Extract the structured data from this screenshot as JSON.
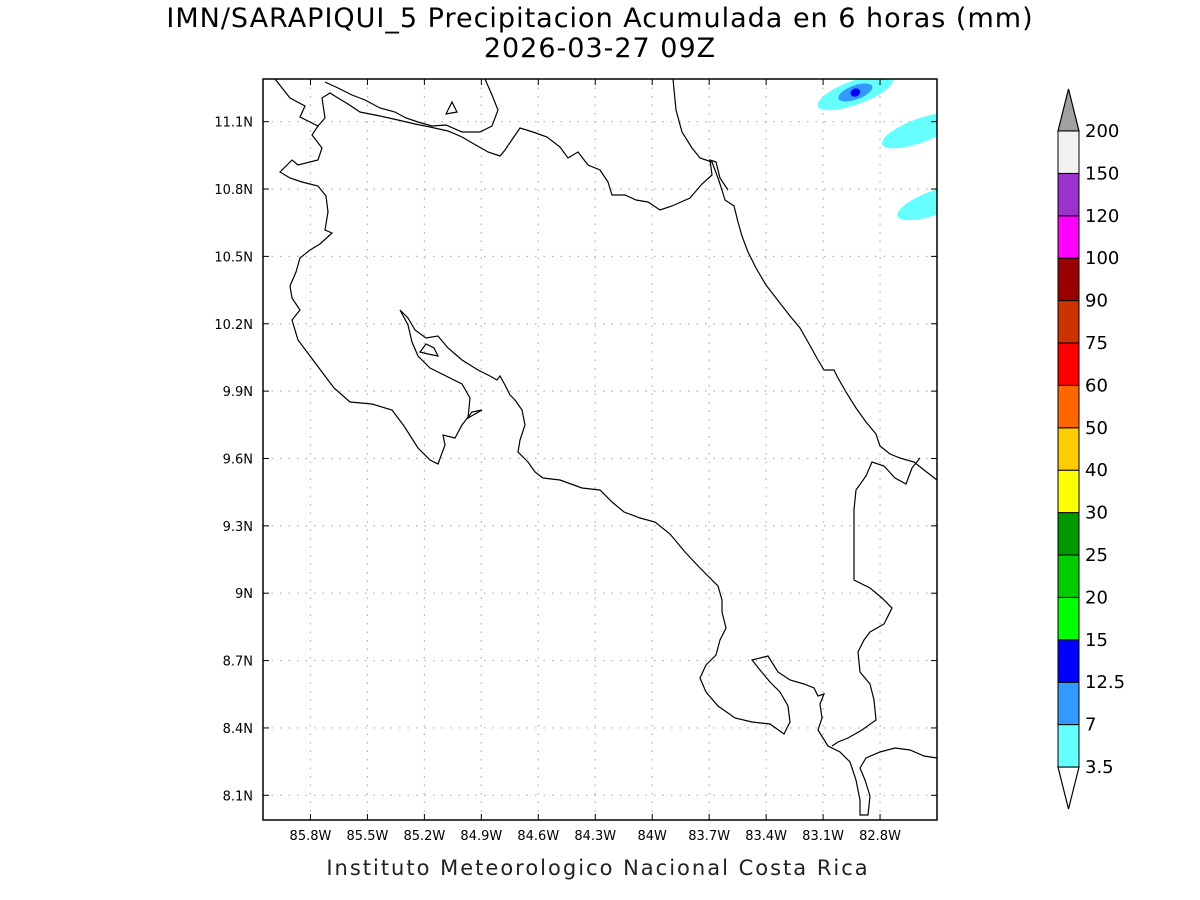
{
  "title": {
    "line1": "IMN/SARAPIQUI_5 Precipitacion Acumulada en 6 horas (mm)",
    "line2": "2026-03-27 09Z"
  },
  "credit": "Instituto Meteorologico Nacional Costa Rica",
  "map": {
    "lon_range": [
      -86.05,
      -82.5
    ],
    "lat_range": [
      7.99,
      11.29
    ],
    "lon_ticks": [
      {
        "value": -85.8,
        "label": "85.8W"
      },
      {
        "value": -85.5,
        "label": "85.5W"
      },
      {
        "value": -85.2,
        "label": "85.2W"
      },
      {
        "value": -84.9,
        "label": "84.9W"
      },
      {
        "value": -84.6,
        "label": "84.6W"
      },
      {
        "value": -84.3,
        "label": "84.3W"
      },
      {
        "value": -84.0,
        "label": "84W"
      },
      {
        "value": -83.7,
        "label": "83.7W"
      },
      {
        "value": -83.4,
        "label": "83.4W"
      },
      {
        "value": -83.1,
        "label": "83.1W"
      },
      {
        "value": -82.8,
        "label": "82.8W"
      }
    ],
    "lat_ticks": [
      {
        "value": 11.1,
        "label": "11.1N"
      },
      {
        "value": 10.8,
        "label": "10.8N"
      },
      {
        "value": 10.5,
        "label": "10.5N"
      },
      {
        "value": 10.2,
        "label": "10.2N"
      },
      {
        "value": 9.9,
        "label": "9.9N"
      },
      {
        "value": 9.6,
        "label": "9.6N"
      },
      {
        "value": 9.3,
        "label": "9.3N"
      },
      {
        "value": 9.0,
        "label": "9N"
      },
      {
        "value": 8.7,
        "label": "8.7N"
      },
      {
        "value": 8.4,
        "label": "8.4N"
      },
      {
        "value": 8.1,
        "label": "8.1N"
      }
    ],
    "grid": true,
    "precip_areas": [
      {
        "lon": -82.93,
        "lat": 11.23,
        "level": "3.5",
        "color": "#66ffff"
      },
      {
        "lon": -82.93,
        "lat": 11.23,
        "level": "7",
        "color": "#3399ff"
      },
      {
        "lon": -82.93,
        "lat": 11.23,
        "level": "12.5",
        "color": "#0000ff"
      },
      {
        "lon": -82.59,
        "lat": 11.06,
        "level": "3.5",
        "color": "#66ffff"
      },
      {
        "lon": -82.51,
        "lat": 10.74,
        "level": "3.5",
        "color": "#66ffff"
      }
    ]
  },
  "colorbar": {
    "levels": [
      "3.5",
      "7",
      "12.5",
      "15",
      "20",
      "25",
      "30",
      "40",
      "50",
      "60",
      "75",
      "90",
      "100",
      "120",
      "150",
      "200"
    ],
    "colors": [
      "#66ffff",
      "#3399ff",
      "#0000ff",
      "#00ff00",
      "#00cc00",
      "#009900",
      "#ffff00",
      "#ffcc00",
      "#ff6600",
      "#ff0000",
      "#cc3300",
      "#990000",
      "#ff00ff",
      "#9933cc",
      "#f2f2f2"
    ],
    "under_color": "#ffffff",
    "over_color": "#a0a0a0"
  }
}
